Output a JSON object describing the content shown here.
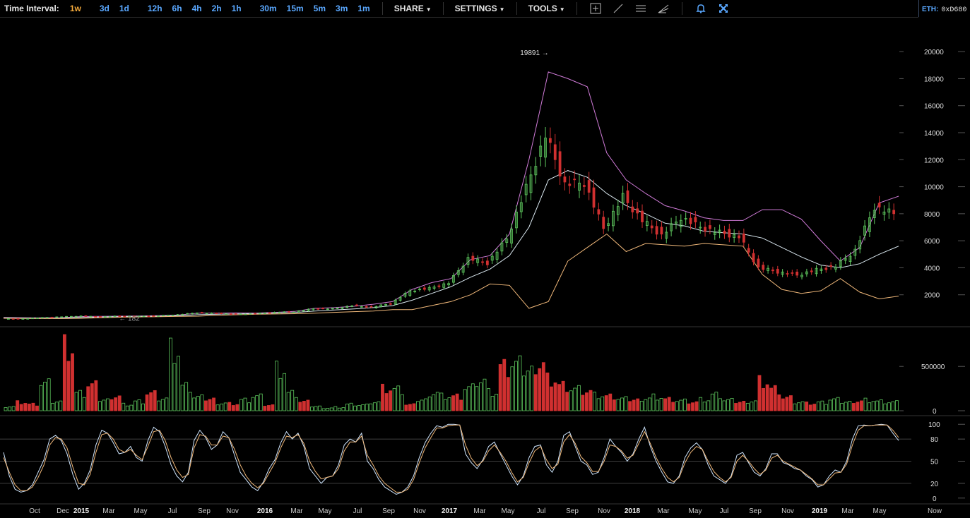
{
  "toolbar": {
    "time_interval_label": "Time Interval:",
    "intervals": [
      "1w",
      "3d",
      "1d",
      "12h",
      "6h",
      "4h",
      "2h",
      "1h",
      "30m",
      "15m",
      "5m",
      "3m",
      "1m"
    ],
    "active_interval": "1w",
    "share_label": "SHARE",
    "settings_label": "SETTINGS",
    "tools_label": "TOOLS",
    "tool_icons": [
      "crosshair-icon",
      "line-icon",
      "horizontal-lines-icon",
      "fib-fan-icon",
      "bell-icon",
      "fullscreen-icon"
    ],
    "accent_color": "#5aa8ff",
    "active_color": "#f2a93b"
  },
  "address_box": {
    "eth_label": "ETH:",
    "eth_value": "0xD680"
  },
  "chart_data": [
    {
      "type": "candlestick",
      "title": "",
      "xlabel": "",
      "ylabel": "",
      "ylim": [
        0,
        21000
      ],
      "yticks": [
        2000,
        4000,
        6000,
        8000,
        10000,
        12000,
        14000,
        16000,
        18000,
        20000
      ],
      "annotations": [
        {
          "label": "19891 →",
          "value": 19891,
          "kind": "high"
        },
        {
          "label": "← 182",
          "value": 182,
          "kind": "low"
        }
      ],
      "x": [
        "2015-08",
        "2015-09",
        "2015-10",
        "2015-11",
        "2015-12",
        "2016-01",
        "2016-02",
        "2016-03",
        "2016-04",
        "2016-05",
        "2016-06",
        "2016-07",
        "2016-08",
        "2016-09",
        "2016-10",
        "2016-11",
        "2016-12",
        "2017-01",
        "2017-02",
        "2017-03",
        "2017-04",
        "2017-05",
        "2017-06",
        "2017-07",
        "2017-08",
        "2017-09",
        "2017-10",
        "2017-11",
        "2017-12",
        "2018-01",
        "2018-02",
        "2018-03",
        "2018-04",
        "2018-05",
        "2018-06",
        "2018-07",
        "2018-08",
        "2018-09",
        "2018-10",
        "2018-11",
        "2018-12",
        "2019-01",
        "2019-02",
        "2019-03",
        "2019-04",
        "2019-05",
        "2019-06"
      ],
      "close": [
        230,
        236,
        314,
        377,
        430,
        368,
        437,
        416,
        448,
        531,
        673,
        624,
        573,
        608,
        700,
        740,
        963,
        970,
        1190,
        1080,
        1350,
        2300,
        2480,
        2875,
        4700,
        4340,
        6130,
        9900,
        13800,
        10200,
        10300,
        6900,
        9240,
        7500,
        6400,
        7730,
        7000,
        6600,
        6300,
        4000,
        3700,
        3450,
        3850,
        4100,
        5300,
        8500,
        8000
      ],
      "bollinger": {
        "upper": [
          320,
          300,
          290,
          300,
          390,
          400,
          420,
          430,
          460,
          500,
          640,
          650,
          660,
          650,
          700,
          780,
          1000,
          1050,
          1150,
          1300,
          1500,
          2400,
          2900,
          3200,
          4600,
          4900,
          6500,
          12000,
          18500,
          18000,
          17400,
          12500,
          10500,
          9500,
          8600,
          8200,
          7700,
          7500,
          7500,
          8300,
          8300,
          7600,
          6000,
          4500,
          5500,
          8800,
          9300
        ],
        "middle": [
          300,
          270,
          260,
          270,
          320,
          350,
          380,
          400,
          420,
          450,
          530,
          560,
          590,
          610,
          640,
          690,
          800,
          880,
          950,
          1050,
          1200,
          1600,
          2100,
          2600,
          3300,
          3900,
          4900,
          7000,
          10500,
          11200,
          10700,
          9500,
          8600,
          8000,
          7300,
          7100,
          6700,
          6600,
          6500,
          6200,
          5500,
          4800,
          4200,
          4000,
          4300,
          5000,
          5600
        ],
        "lower": [
          260,
          250,
          240,
          240,
          260,
          300,
          340,
          360,
          380,
          400,
          420,
          480,
          520,
          560,
          580,
          600,
          640,
          700,
          750,
          800,
          900,
          900,
          1200,
          1500,
          2000,
          2800,
          2700,
          1000,
          1500,
          4500,
          5500,
          6500,
          5200,
          5800,
          5700,
          5600,
          5800,
          5700,
          5600,
          3500,
          2400,
          2100,
          2300,
          3200,
          2200,
          1700,
          1900
        ],
        "colors": {
          "upper": "#d07bd8",
          "middle": "#d8e6ee",
          "lower": "#f0b87a"
        }
      },
      "up_color": "#5ec85e",
      "down_color": "#d03030"
    },
    {
      "type": "bar",
      "title": "Volume",
      "yticks": [
        0,
        500000
      ],
      "ylim": [
        0,
        900000
      ],
      "values": [
        60000,
        120000,
        90000,
        380000,
        130000,
        860000,
        230000,
        340000,
        150000,
        210000,
        90000,
        130000,
        240000,
        170000,
        820000,
        320000,
        180000,
        160000,
        110000,
        100000,
        150000,
        200000,
        80000,
        560000,
        230000,
        120000,
        60000,
        40000,
        50000,
        90000,
        80000,
        120000,
        300000,
        280000,
        80000,
        150000,
        260000,
        210000,
        200000,
        320000,
        420000,
        250000,
        580000,
        620000,
        560000,
        680000,
        450000,
        350000,
        300000,
        270000,
        210000,
        190000,
        160000,
        150000,
        180000,
        200000,
        160000,
        140000,
        120000,
        150000,
        210000,
        140000,
        120000,
        140000,
        420000,
        300000,
        180000,
        120000,
        100000,
        110000,
        150000,
        120000,
        140000,
        150000,
        130000,
        120000
      ],
      "up_flags": [
        1,
        0,
        0,
        1,
        1,
        0,
        1,
        0,
        1,
        0,
        1,
        1,
        0,
        1,
        1,
        1,
        1,
        0,
        1,
        0,
        1,
        1,
        0,
        1,
        1,
        0,
        1,
        1,
        1,
        1,
        1,
        1,
        0,
        1,
        0,
        1,
        1,
        1,
        0,
        1,
        1,
        1,
        0,
        1,
        1,
        0,
        0,
        0,
        1,
        0,
        1,
        0,
        1,
        0,
        1,
        1,
        0,
        1,
        0,
        1,
        1,
        1,
        0,
        1,
        0,
        0,
        0,
        1,
        0,
        1,
        1,
        1,
        0,
        1,
        1,
        1
      ],
      "up_color": "#5ec85e",
      "down_color": "#d03030"
    },
    {
      "type": "line",
      "title": "Stochastic",
      "ylim": [
        -5,
        105
      ],
      "yticks": [
        0,
        20,
        50,
        80,
        100
      ],
      "reference_lines": [
        20,
        50,
        80
      ],
      "series": [
        {
          "color": "#cfe6ff",
          "values": [
            62,
            30,
            12,
            8,
            10,
            18,
            35,
            52,
            80,
            85,
            78,
            60,
            32,
            12,
            20,
            38,
            72,
            92,
            88,
            75,
            60,
            62,
            70,
            55,
            50,
            78,
            96,
            90,
            70,
            45,
            30,
            22,
            35,
            78,
            92,
            82,
            66,
            72,
            90,
            82,
            58,
            35,
            25,
            15,
            10,
            22,
            40,
            52,
            75,
            90,
            80,
            88,
            70,
            40,
            30,
            20,
            28,
            30,
            45,
            72,
            80,
            76,
            88,
            50,
            40,
            25,
            15,
            10,
            5,
            8,
            15,
            30,
            55,
            75,
            88,
            98,
            96,
            100,
            100,
            99,
            60,
            48,
            40,
            52,
            70,
            76,
            60,
            45,
            30,
            18,
            30,
            55,
            70,
            72,
            45,
            35,
            50,
            85,
            90,
            70,
            50,
            45,
            32,
            35,
            55,
            80,
            70,
            62,
            50,
            60,
            80,
            96,
            70,
            50,
            35,
            22,
            20,
            30,
            55,
            68,
            75,
            66,
            45,
            30,
            25,
            20,
            30,
            58,
            62,
            48,
            35,
            30,
            40,
            60,
            60,
            48,
            45,
            40,
            38,
            30,
            25,
            15,
            18,
            30,
            38,
            35,
            50,
            80,
            98,
            99,
            98,
            99,
            100,
            99,
            88,
            78
          ]
        },
        {
          "color": "#f0b87a",
          "values": [
            55,
            35,
            18,
            10,
            10,
            15,
            28,
            45,
            72,
            82,
            80,
            68,
            42,
            20,
            18,
            32,
            62,
            86,
            88,
            80,
            66,
            62,
            66,
            58,
            52,
            70,
            90,
            92,
            78,
            55,
            38,
            28,
            32,
            68,
            86,
            84,
            72,
            72,
            84,
            82,
            66,
            45,
            30,
            20,
            14,
            20,
            34,
            48,
            68,
            84,
            82,
            86,
            74,
            50,
            36,
            26,
            28,
            30,
            40,
            64,
            76,
            76,
            84,
            58,
            45,
            30,
            20,
            14,
            8,
            8,
            12,
            25,
            48,
            68,
            82,
            95,
            95,
            98,
            99,
            99,
            72,
            54,
            44,
            50,
            64,
            72,
            62,
            50,
            35,
            22,
            28,
            48,
            64,
            70,
            52,
            40,
            46,
            76,
            86,
            74,
            56,
            48,
            36,
            36,
            50,
            72,
            70,
            64,
            54,
            58,
            74,
            90,
            74,
            55,
            40,
            28,
            22,
            28,
            48,
            62,
            70,
            66,
            50,
            36,
            28,
            22,
            28,
            50,
            58,
            50,
            40,
            32,
            38,
            54,
            58,
            50,
            46,
            42,
            38,
            32,
            26,
            18,
            18,
            26,
            34,
            35,
            46,
            72,
            92,
            98,
            98,
            99,
            99,
            99,
            92,
            82
          ]
        }
      ],
      "xlabels": [
        "Oct",
        "Dec",
        "2015",
        "Mar",
        "May",
        "Jul",
        "Sep",
        "Nov",
        "2016",
        "Mar",
        "May",
        "Jul",
        "Sep",
        "Nov",
        "2017",
        "Mar",
        "May",
        "Jul",
        "Sep",
        "Nov",
        "2018",
        "Mar",
        "May",
        "Jul",
        "Sep",
        "Nov",
        "2019",
        "Mar",
        "May",
        "Now"
      ],
      "year_labels": [
        "2015",
        "2016",
        "2017",
        "2018",
        "2019"
      ]
    }
  ]
}
